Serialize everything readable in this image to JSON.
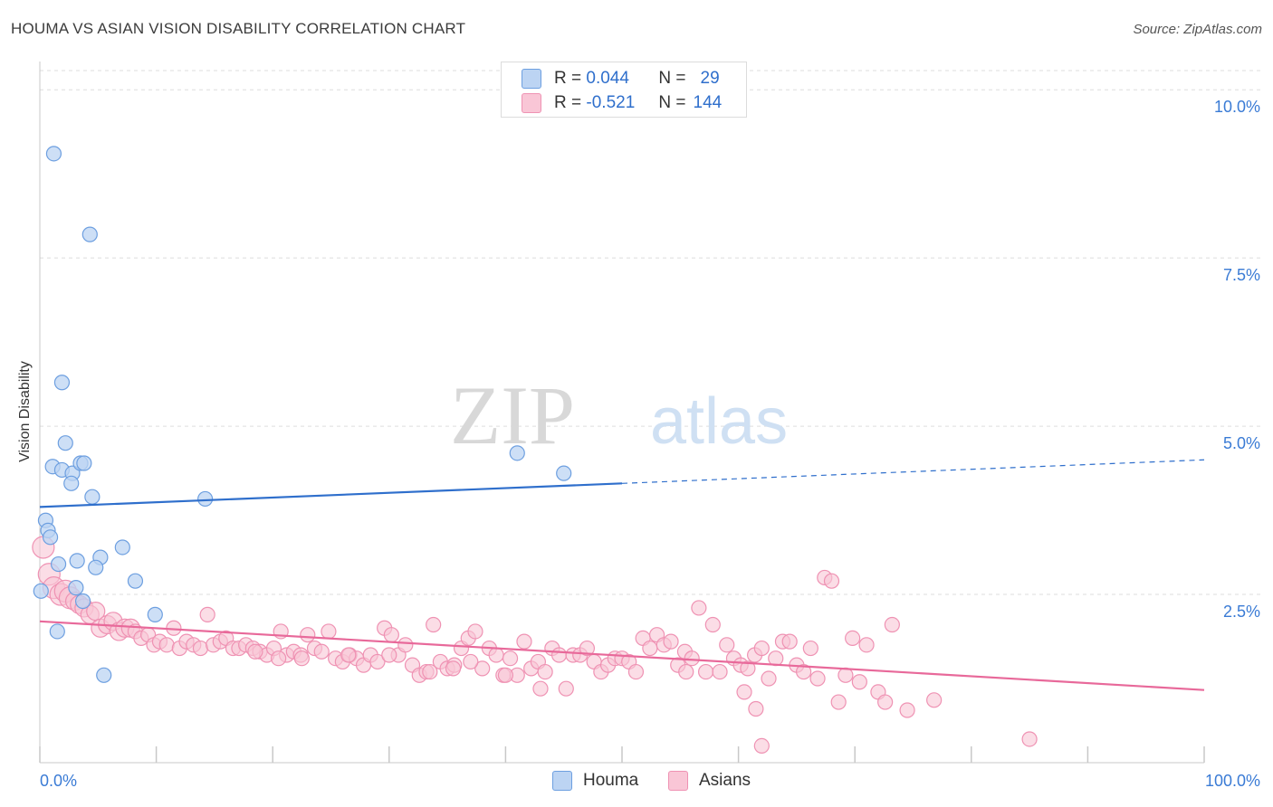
{
  "title": "HOUMA VS ASIAN VISION DISABILITY CORRELATION CHART",
  "source": "Source: ZipAtlas.com",
  "watermark": {
    "zip": "ZIP",
    "atlas": "atlas"
  },
  "legend_top": {
    "rows": [
      {
        "r_label": "R =",
        "r_value": "0.044",
        "n_label": "N =",
        "n_value": "29"
      },
      {
        "r_label": "R =",
        "r_value": "-0.521",
        "n_label": "N =",
        "n_value": "144"
      }
    ]
  },
  "legend_bottom": {
    "houma": "Houma",
    "asians": "Asians"
  },
  "colors": {
    "houma_fill": "#bcd4f3",
    "houma_stroke": "#6d9fe0",
    "houma_line": "#2f6fcc",
    "asian_fill": "#f9c6d6",
    "asian_stroke": "#ef92b3",
    "asian_line": "#e8699a",
    "axis_text": "#3a7bd5",
    "grid": "#dddddd"
  },
  "chart_data": {
    "type": "scatter",
    "title": "HOUMA VS ASIAN VISION DISABILITY CORRELATION CHART",
    "xlabel": "",
    "ylabel": "Vision Disability",
    "xlim": [
      0,
      100
    ],
    "ylim": [
      0,
      10.5
    ],
    "x_tick_labels": [
      "0.0%",
      "100.0%"
    ],
    "y_ticks": [
      2.5,
      5.0,
      7.5,
      10.0
    ],
    "y_tick_labels": [
      "2.5%",
      "5.0%",
      "7.5%",
      "10.0%"
    ],
    "grid": "horizontal dashed",
    "legend": "top-center",
    "series": [
      {
        "name": "Houma",
        "r": 0.044,
        "n": 29,
        "trend": {
          "x0": 0,
          "y0": 3.8,
          "x1": 50,
          "y1": 4.15,
          "x_dash_end": 100,
          "y_dash_end": 4.5
        },
        "points": [
          [
            1.2,
            9.05
          ],
          [
            4.3,
            7.85
          ],
          [
            1.9,
            5.65
          ],
          [
            2.2,
            4.75
          ],
          [
            1.1,
            4.4
          ],
          [
            1.9,
            4.35
          ],
          [
            2.8,
            4.3
          ],
          [
            3.5,
            4.45
          ],
          [
            3.8,
            4.45
          ],
          [
            2.7,
            4.15
          ],
          [
            4.5,
            3.95
          ],
          [
            14.2,
            3.92
          ],
          [
            41,
            4.6
          ],
          [
            45,
            4.3
          ],
          [
            0.5,
            3.6
          ],
          [
            0.7,
            3.45
          ],
          [
            0.9,
            3.35
          ],
          [
            7.1,
            3.2
          ],
          [
            1.6,
            2.95
          ],
          [
            3.2,
            3.0
          ],
          [
            5.2,
            3.05
          ],
          [
            4.8,
            2.9
          ],
          [
            0.1,
            2.55
          ],
          [
            3.1,
            2.6
          ],
          [
            8.2,
            2.7
          ],
          [
            3.7,
            2.4
          ],
          [
            9.9,
            2.2
          ],
          [
            1.5,
            1.95
          ],
          [
            5.5,
            1.3
          ]
        ]
      },
      {
        "name": "Asians",
        "r": -0.521,
        "n": 144,
        "trend": {
          "x0": 0,
          "y0": 2.1,
          "x1": 100,
          "y1": 1.08
        },
        "points": [
          [
            0.3,
            3.2
          ],
          [
            0.8,
            2.8
          ],
          [
            1.2,
            2.6
          ],
          [
            1.8,
            2.5
          ],
          [
            2.2,
            2.55
          ],
          [
            2.6,
            2.45
          ],
          [
            3.0,
            2.4
          ],
          [
            3.4,
            2.35
          ],
          [
            3.8,
            2.3
          ],
          [
            4.3,
            2.2
          ],
          [
            4.8,
            2.25
          ],
          [
            5.2,
            2.0
          ],
          [
            5.8,
            2.05
          ],
          [
            6.3,
            2.1
          ],
          [
            6.8,
            1.95
          ],
          [
            7.3,
            2.0
          ],
          [
            7.8,
            2.0
          ],
          [
            8.2,
            1.95
          ],
          [
            8.7,
            1.85
          ],
          [
            9.3,
            1.9
          ],
          [
            9.8,
            1.75
          ],
          [
            10.3,
            1.8
          ],
          [
            10.9,
            1.75
          ],
          [
            11.5,
            2.0
          ],
          [
            12.0,
            1.7
          ],
          [
            12.6,
            1.8
          ],
          [
            13.2,
            1.75
          ],
          [
            13.8,
            1.7
          ],
          [
            14.4,
            2.2
          ],
          [
            14.9,
            1.75
          ],
          [
            15.5,
            1.8
          ],
          [
            16.0,
            1.85
          ],
          [
            16.6,
            1.7
          ],
          [
            17.1,
            1.7
          ],
          [
            17.7,
            1.75
          ],
          [
            18.3,
            1.7
          ],
          [
            18.9,
            1.65
          ],
          [
            19.5,
            1.6
          ],
          [
            20.1,
            1.7
          ],
          [
            20.7,
            1.95
          ],
          [
            21.2,
            1.6
          ],
          [
            21.8,
            1.65
          ],
          [
            22.4,
            1.6
          ],
          [
            23.0,
            1.9
          ],
          [
            23.6,
            1.7
          ],
          [
            24.2,
            1.65
          ],
          [
            24.8,
            1.95
          ],
          [
            25.4,
            1.55
          ],
          [
            26.0,
            1.5
          ],
          [
            26.6,
            1.6
          ],
          [
            27.2,
            1.55
          ],
          [
            27.8,
            1.45
          ],
          [
            28.4,
            1.6
          ],
          [
            29.0,
            1.5
          ],
          [
            29.6,
            2.0
          ],
          [
            30.2,
            1.9
          ],
          [
            30.8,
            1.6
          ],
          [
            31.4,
            1.75
          ],
          [
            32.0,
            1.45
          ],
          [
            32.6,
            1.3
          ],
          [
            33.2,
            1.35
          ],
          [
            33.8,
            2.05
          ],
          [
            34.4,
            1.5
          ],
          [
            35.0,
            1.4
          ],
          [
            35.6,
            1.45
          ],
          [
            36.2,
            1.7
          ],
          [
            36.8,
            1.85
          ],
          [
            37.4,
            1.95
          ],
          [
            38.0,
            1.4
          ],
          [
            38.6,
            1.7
          ],
          [
            39.2,
            1.6
          ],
          [
            39.8,
            1.3
          ],
          [
            40.4,
            1.55
          ],
          [
            41.0,
            1.3
          ],
          [
            41.6,
            1.8
          ],
          [
            42.2,
            1.4
          ],
          [
            42.8,
            1.5
          ],
          [
            43.4,
            1.35
          ],
          [
            44.0,
            1.7
          ],
          [
            44.6,
            1.6
          ],
          [
            45.2,
            1.1
          ],
          [
            45.8,
            1.6
          ],
          [
            46.4,
            1.6
          ],
          [
            47.0,
            1.7
          ],
          [
            47.6,
            1.5
          ],
          [
            48.2,
            1.35
          ],
          [
            48.8,
            1.45
          ],
          [
            49.4,
            1.55
          ],
          [
            50.0,
            1.55
          ],
          [
            50.6,
            1.5
          ],
          [
            51.2,
            1.35
          ],
          [
            51.8,
            1.85
          ],
          [
            52.4,
            1.7
          ],
          [
            53.0,
            1.9
          ],
          [
            53.6,
            1.75
          ],
          [
            54.2,
            1.8
          ],
          [
            54.8,
            1.45
          ],
          [
            55.4,
            1.65
          ],
          [
            56.0,
            1.55
          ],
          [
            56.6,
            2.3
          ],
          [
            57.2,
            1.35
          ],
          [
            57.8,
            2.05
          ],
          [
            58.4,
            1.35
          ],
          [
            59.0,
            1.75
          ],
          [
            59.6,
            1.55
          ],
          [
            60.2,
            1.45
          ],
          [
            60.8,
            1.4
          ],
          [
            61.4,
            1.6
          ],
          [
            62.0,
            1.7
          ],
          [
            62.6,
            1.25
          ],
          [
            63.2,
            1.55
          ],
          [
            63.8,
            1.8
          ],
          [
            64.4,
            1.8
          ],
          [
            65.0,
            1.45
          ],
          [
            65.6,
            1.35
          ],
          [
            66.2,
            1.7
          ],
          [
            66.8,
            1.25
          ],
          [
            67.4,
            2.75
          ],
          [
            68.0,
            2.7
          ],
          [
            68.6,
            0.9
          ],
          [
            69.2,
            1.3
          ],
          [
            69.8,
            1.85
          ],
          [
            70.4,
            1.2
          ],
          [
            71.0,
            1.75
          ],
          [
            72.0,
            1.05
          ],
          [
            61.5,
            0.8
          ],
          [
            62.0,
            0.25
          ],
          [
            72.6,
            0.9
          ],
          [
            73.2,
            2.05
          ],
          [
            74.5,
            0.78
          ],
          [
            76.8,
            0.93
          ],
          [
            85.0,
            0.35
          ],
          [
            60.5,
            1.05
          ],
          [
            55.5,
            1.35
          ],
          [
            33.5,
            1.35
          ],
          [
            30.0,
            1.6
          ],
          [
            20.5,
            1.55
          ],
          [
            18.5,
            1.65
          ],
          [
            22.5,
            1.55
          ],
          [
            26.5,
            1.6
          ],
          [
            37.0,
            1.5
          ],
          [
            43.0,
            1.1
          ],
          [
            40.0,
            1.3
          ],
          [
            35.5,
            1.4
          ]
        ]
      }
    ]
  }
}
